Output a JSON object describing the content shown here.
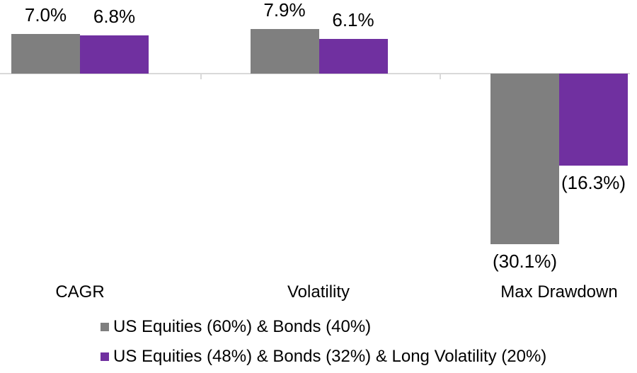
{
  "chart_data": {
    "type": "bar",
    "title": "",
    "xlabel": "",
    "ylabel": "",
    "categories": [
      "CAGR",
      "Volatility",
      "Max Drawdown"
    ],
    "series": [
      {
        "name": "US Equities (60%) & Bonds (40%)",
        "color": "#7f7f7f",
        "values": [
          7.0,
          7.9,
          -30.1
        ],
        "value_labels": [
          "7.0%",
          "7.9%",
          "(30.1%)"
        ]
      },
      {
        "name": "US Equities (48%) & Bonds (32%) & Long Volatility (20%)",
        "color": "#7030a0",
        "values": [
          6.8,
          6.1,
          -16.3
        ],
        "value_labels": [
          "6.8%",
          "6.1%",
          "(16.3%)"
        ]
      }
    ],
    "ylim": [
      -34,
      13
    ],
    "grid": false,
    "y_axis_labels_visible": false,
    "value_label_format": "percent, negatives shown in parentheses",
    "legend_position": "bottom-left",
    "axis_color": "#d9d9d9",
    "text_color": "#000000",
    "background_color": "#ffffff"
  }
}
